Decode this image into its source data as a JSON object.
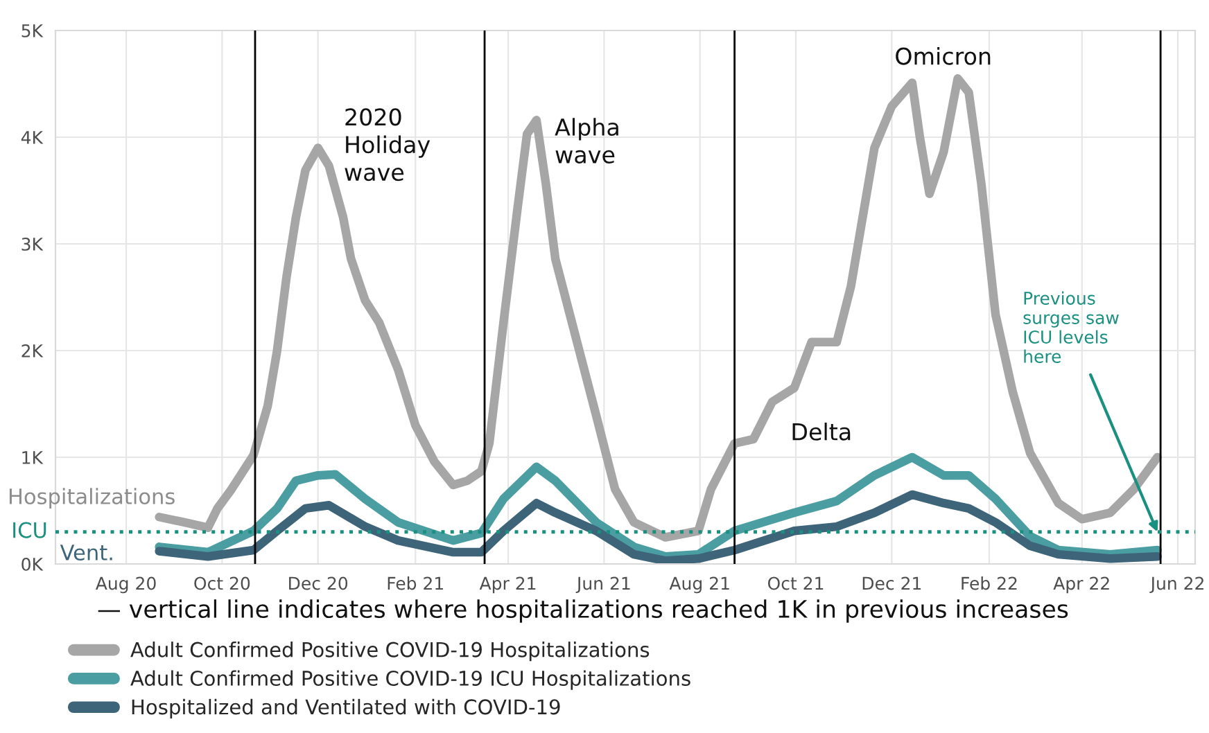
{
  "chart_data": {
    "type": "line",
    "x": [
      "2020-08-22",
      "2020-09-07",
      "2020-09-22",
      "2020-09-28",
      "2020-10-07",
      "2020-10-21",
      "2020-10-30",
      "2020-11-05",
      "2020-11-11",
      "2020-11-17",
      "2020-11-23",
      "2020-12-01",
      "2020-12-08",
      "2020-12-17",
      "2020-12-22",
      "2020-12-31",
      "2021-01-09",
      "2021-01-21",
      "2021-02-01",
      "2021-02-13",
      "2021-02-25",
      "2021-03-06",
      "2021-03-15",
      "2021-03-20",
      "2021-03-29",
      "2021-04-07",
      "2021-04-13",
      "2021-04-19",
      "2021-04-25",
      "2021-05-01",
      "2021-05-27",
      "2021-06-08",
      "2021-06-20",
      "2021-07-10",
      "2021-07-31",
      "2021-08-08",
      "2021-08-23",
      "2021-09-04",
      "2021-09-16",
      "2021-09-30",
      "2021-10-11",
      "2021-10-27",
      "2021-11-05",
      "2021-11-20",
      "2021-12-01",
      "2021-12-14",
      "2021-12-19",
      "2021-12-25",
      "2022-01-03",
      "2022-01-12",
      "2022-01-19",
      "2022-01-27",
      "2022-02-05",
      "2022-02-16",
      "2022-02-27",
      "2022-03-17",
      "2022-04-01",
      "2022-04-19",
      "2022-05-04",
      "2022-05-19"
    ],
    "series": [
      {
        "name": "Adult Confirmed Positive COVID-19 Hospitalizations",
        "color": "#a6a6a6",
        "values": [
          440,
          390,
          340,
          520,
          700,
          1020,
          1480,
          2000,
          2690,
          3250,
          3690,
          3900,
          3730,
          3250,
          2860,
          2470,
          2260,
          1820,
          1300,
          960,
          740,
          780,
          870,
          1130,
          2260,
          3340,
          4030,
          4160,
          3560,
          2860,
          1390,
          700,
          390,
          250,
          310,
          700,
          1130,
          1170,
          1520,
          1650,
          2080,
          2080,
          2600,
          3900,
          4290,
          4510,
          3990,
          3470,
          3860,
          4550,
          4420,
          3560,
          2340,
          1610,
          1040,
          570,
          420,
          480,
          700,
          1000
        ]
      },
      {
        "name": "Adult Confirmed Positive COVID-19 ICU Hospitalizations",
        "color": "#4a9ea1",
        "x": [
          "2020-08-22",
          "2020-09-22",
          "2020-10-21",
          "2020-11-05",
          "2020-11-17",
          "2020-12-01",
          "2020-12-12",
          "2020-12-31",
          "2021-01-21",
          "2021-02-25",
          "2021-03-15",
          "2021-03-29",
          "2021-04-19",
          "2021-05-01",
          "2021-05-27",
          "2021-06-20",
          "2021-07-10",
          "2021-07-31",
          "2021-08-23",
          "2021-09-30",
          "2021-10-27",
          "2021-11-20",
          "2021-12-14",
          "2022-01-03",
          "2022-01-19",
          "2022-02-05",
          "2022-02-27",
          "2022-03-17",
          "2022-04-19",
          "2022-05-19"
        ],
        "values": [
          160,
          110,
          310,
          520,
          780,
          830,
          840,
          610,
          390,
          220,
          290,
          610,
          910,
          780,
          390,
          160,
          70,
          90,
          310,
          480,
          590,
          830,
          1000,
          830,
          830,
          610,
          260,
          130,
          90,
          130
        ]
      },
      {
        "name": "Hospitalized and Ventilated with COVID-19",
        "color": "#3d6478",
        "x": [
          "2020-08-22",
          "2020-09-22",
          "2020-10-21",
          "2020-11-05",
          "2020-11-23",
          "2020-12-08",
          "2020-12-31",
          "2021-01-21",
          "2021-02-25",
          "2021-03-15",
          "2021-03-29",
          "2021-04-19",
          "2021-05-01",
          "2021-05-27",
          "2021-06-20",
          "2021-07-10",
          "2021-07-31",
          "2021-08-23",
          "2021-09-30",
          "2021-10-27",
          "2021-11-20",
          "2021-12-14",
          "2022-01-03",
          "2022-01-19",
          "2022-02-05",
          "2022-02-27",
          "2022-03-17",
          "2022-04-19",
          "2022-05-19"
        ],
        "values": [
          120,
          70,
          130,
          310,
          520,
          550,
          350,
          220,
          110,
          110,
          310,
          570,
          480,
          310,
          90,
          30,
          50,
          130,
          310,
          350,
          480,
          650,
          570,
          520,
          390,
          170,
          90,
          50,
          70
        ]
      }
    ],
    "xlim": [
      "2020-06-17",
      "2022-06-12"
    ],
    "xticks": [
      {
        "value": "2020-08-01",
        "label": "Aug 20"
      },
      {
        "value": "2020-10-01",
        "label": "Oct 20"
      },
      {
        "value": "2020-12-01",
        "label": "Dec 20"
      },
      {
        "value": "2021-02-01",
        "label": "Feb 21"
      },
      {
        "value": "2021-04-01",
        "label": "Apr 21"
      },
      {
        "value": "2021-06-01",
        "label": "Jun 21"
      },
      {
        "value": "2021-08-01",
        "label": "Aug 21"
      },
      {
        "value": "2021-10-01",
        "label": "Oct 21"
      },
      {
        "value": "2021-12-01",
        "label": "Dec 21"
      },
      {
        "value": "2022-02-01",
        "label": "Feb 22"
      },
      {
        "value": "2022-04-01",
        "label": "Apr 22"
      },
      {
        "value": "2022-06-01",
        "label": "Jun 22"
      }
    ],
    "ylim": [
      0,
      5000
    ],
    "yticks": [
      {
        "value": 0,
        "label": "0K"
      },
      {
        "value": 1000,
        "label": "1K"
      },
      {
        "value": 2000,
        "label": "2K"
      },
      {
        "value": 3000,
        "label": "3K"
      },
      {
        "value": 4000,
        "label": "4K"
      },
      {
        "value": 5000,
        "label": "5K"
      }
    ],
    "ref_lines": [
      {
        "axis": "x",
        "value": "2020-10-22",
        "color": "#000000",
        "line_style": "solid"
      },
      {
        "axis": "x",
        "value": "2021-03-17",
        "color": "#000000",
        "line_style": "solid"
      },
      {
        "axis": "x",
        "value": "2021-08-23",
        "color": "#000000",
        "line_style": "solid"
      },
      {
        "axis": "x",
        "value": "2022-05-21",
        "color": "#000000",
        "line_style": "solid"
      },
      {
        "axis": "y",
        "value": 300,
        "label": "ICU",
        "color": "#1a9080",
        "line_style": "dotted"
      }
    ],
    "annotations": [
      "2020\nHoliday\nwave",
      "Alpha\nwave",
      "Omicron",
      "Delta",
      {
        "text": "Previous\nsurges saw\nICU levels\nhere",
        "x": "2022-05-19",
        "y": 300
      },
      "Hospitalizations",
      "Vent.",
      "— vertical line indicates where hospitalizations reached 1K in previous increases"
    ],
    "grid": true,
    "legend": "bottom",
    "line_style": "solid",
    "marker": "none"
  }
}
